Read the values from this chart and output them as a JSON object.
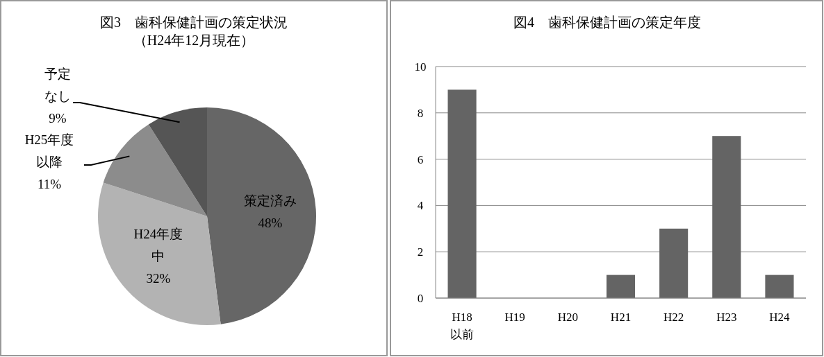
{
  "chart_data": [
    {
      "type": "pie",
      "title": "図3　歯科保健計画の策定状況",
      "subtitle": "（H24年12月現在）",
      "categories": [
        "策定済み",
        "H24年度中",
        "H25年度以降",
        "予定なし"
      ],
      "values": [
        48,
        32,
        11,
        9
      ],
      "value_labels": [
        "48%",
        "32%",
        "11%",
        "9%"
      ],
      "colors": [
        "#666666",
        "#b3b3b3",
        "#8c8c8c",
        "#555555"
      ]
    },
    {
      "type": "bar",
      "title": "図4　歯科保健計画の策定年度",
      "categories": [
        "H18以前",
        "H19",
        "H20",
        "H21",
        "H22",
        "H23",
        "H24"
      ],
      "values": [
        9,
        0,
        0,
        1,
        3,
        7,
        1
      ],
      "color": "#646464",
      "ylim": [
        0,
        10
      ],
      "yticks": [
        0,
        2,
        4,
        6,
        8,
        10
      ],
      "grid": "y"
    }
  ]
}
